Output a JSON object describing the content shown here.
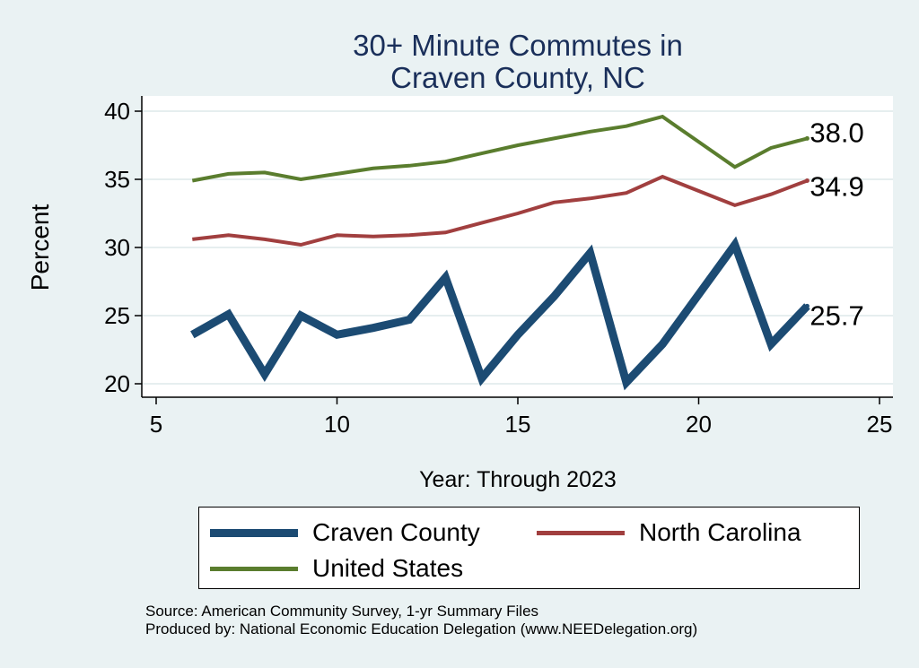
{
  "chart_data": {
    "type": "line",
    "title_lines": [
      "30+ Minute Commutes in",
      "Craven County, NC"
    ],
    "xlabel": "Year: Through 2023",
    "ylabel": "Percent",
    "xlim": [
      5,
      25
    ],
    "ylim": [
      20,
      40
    ],
    "xticks": [
      5,
      10,
      15,
      20,
      25
    ],
    "yticks": [
      20,
      25,
      30,
      35,
      40
    ],
    "grid": true,
    "x": [
      6,
      7,
      8,
      9,
      10,
      11,
      12,
      13,
      14,
      15,
      16,
      17,
      18,
      19,
      21,
      22,
      23
    ],
    "series": [
      {
        "name": "Craven County",
        "color": "#1c4b73",
        "values": [
          23.6,
          25.1,
          20.7,
          25.0,
          23.6,
          24.1,
          24.7,
          27.8,
          20.4,
          23.6,
          26.4,
          29.6,
          20.1,
          22.9,
          30.2,
          22.9,
          25.7
        ],
        "end_label": "25.7"
      },
      {
        "name": "North Carolina",
        "color": "#a13f3f",
        "values": [
          30.6,
          30.9,
          30.6,
          30.2,
          30.9,
          30.8,
          30.9,
          31.1,
          31.8,
          32.5,
          33.3,
          33.6,
          34.0,
          35.2,
          33.1,
          33.9,
          34.9
        ],
        "end_label": "34.9"
      },
      {
        "name": "United States",
        "color": "#5a7d2e",
        "values": [
          34.9,
          35.4,
          35.5,
          35.0,
          35.4,
          35.8,
          36.0,
          36.3,
          36.9,
          37.5,
          38.0,
          38.5,
          38.9,
          39.6,
          35.9,
          37.3,
          38.0
        ],
        "end_label": "38.0"
      }
    ]
  },
  "source_lines": [
    "Source: American Community Survey, 1-yr Summary Files",
    "Produced by: National Economic Education Delegation (www.NEEDelegation.org)"
  ]
}
